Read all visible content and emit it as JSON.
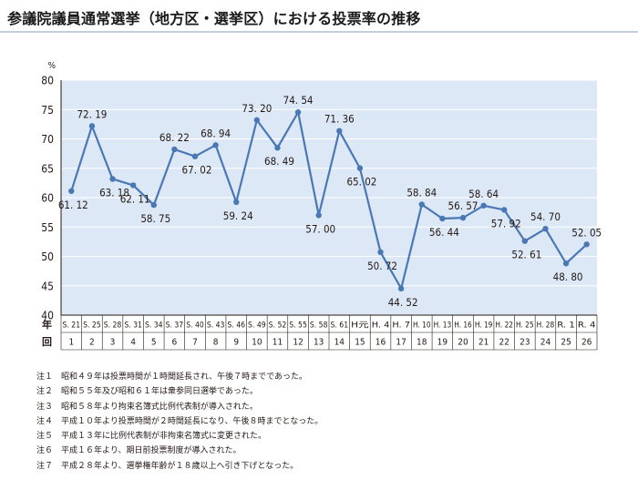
{
  "page": {
    "title": "参議院議員通常選挙（地方区・選挙区）における投票率の推移"
  },
  "colors": {
    "plot_background": "#dce8f5",
    "line": "#4a78b4",
    "title_rule": "#c4cee0",
    "text": "#231815"
  },
  "chart_data": {
    "type": "line",
    "title": "",
    "ylabel": "%",
    "row_label_top": "年",
    "row_label_bottom": "回",
    "ylim": [
      40,
      80
    ],
    "yticks": [
      40,
      45,
      50,
      55,
      60,
      65,
      70,
      75,
      80
    ],
    "grid": true,
    "categories": [
      "S. 21",
      "S. 25",
      "S. 28",
      "S. 31",
      "S. 34",
      "S. 37",
      "S. 40",
      "S. 43",
      "S. 46",
      "S. 49",
      "S. 52",
      "S. 55",
      "S. 58",
      "S. 61",
      "H元",
      "H. 4",
      "H. 7",
      "H. 10",
      "H. 13",
      "H. 16",
      "H. 19",
      "H. 22",
      "H. 25",
      "H. 28",
      "R. 1",
      "R. 4"
    ],
    "rounds": [
      "1",
      "2",
      "3",
      "4",
      "5",
      "6",
      "7",
      "8",
      "9",
      "10",
      "11",
      "12",
      "13",
      "14",
      "15",
      "16",
      "17",
      "18",
      "19",
      "20",
      "21",
      "22",
      "23",
      "24",
      "25",
      "26"
    ],
    "series": [
      {
        "values": [
          61.12,
          72.19,
          63.18,
          62.11,
          58.75,
          68.22,
          67.02,
          68.94,
          59.24,
          73.2,
          68.49,
          74.54,
          57.0,
          71.36,
          65.02,
          50.72,
          44.52,
          58.84,
          56.44,
          56.57,
          58.64,
          57.92,
          52.61,
          54.7,
          48.8,
          52.05
        ],
        "labels": [
          "61. 12",
          "72. 19",
          "63. 18",
          "62. 11",
          "58. 75",
          "68. 22",
          "67. 02",
          "68. 94",
          "59. 24",
          "73. 20",
          "68. 49",
          "74. 54",
          "57. 00",
          "71. 36",
          "65. 02",
          "50. 72",
          "44. 52",
          "58. 84",
          "56. 44",
          "56. 57",
          "58. 64",
          "57. 92",
          "52. 61",
          "54. 70",
          "48. 80",
          "52. 05"
        ]
      }
    ]
  },
  "notes": [
    {
      "tag": "注１",
      "text": "昭和４９年は投票時間が１時間延長され、午後７時までであった。"
    },
    {
      "tag": "注２",
      "text": "昭和５５年及び昭和６１年は衆参同日選挙であった。"
    },
    {
      "tag": "注３",
      "text": "昭和５８年より拘束名簿式比例代表制が導入された。"
    },
    {
      "tag": "注４",
      "text": "平成１０年より投票時間が２時間延長になり、午後８時までとなった。"
    },
    {
      "tag": "注５",
      "text": "平成１３年に比例代表制が非拘束名簿式に変更された。"
    },
    {
      "tag": "注６",
      "text": "平成１６年より、期日前投票制度が導入された。"
    },
    {
      "tag": "注７",
      "text": "平成２８年より、選挙権年齢が１８歳以上へ引き下げとなった。"
    }
  ]
}
